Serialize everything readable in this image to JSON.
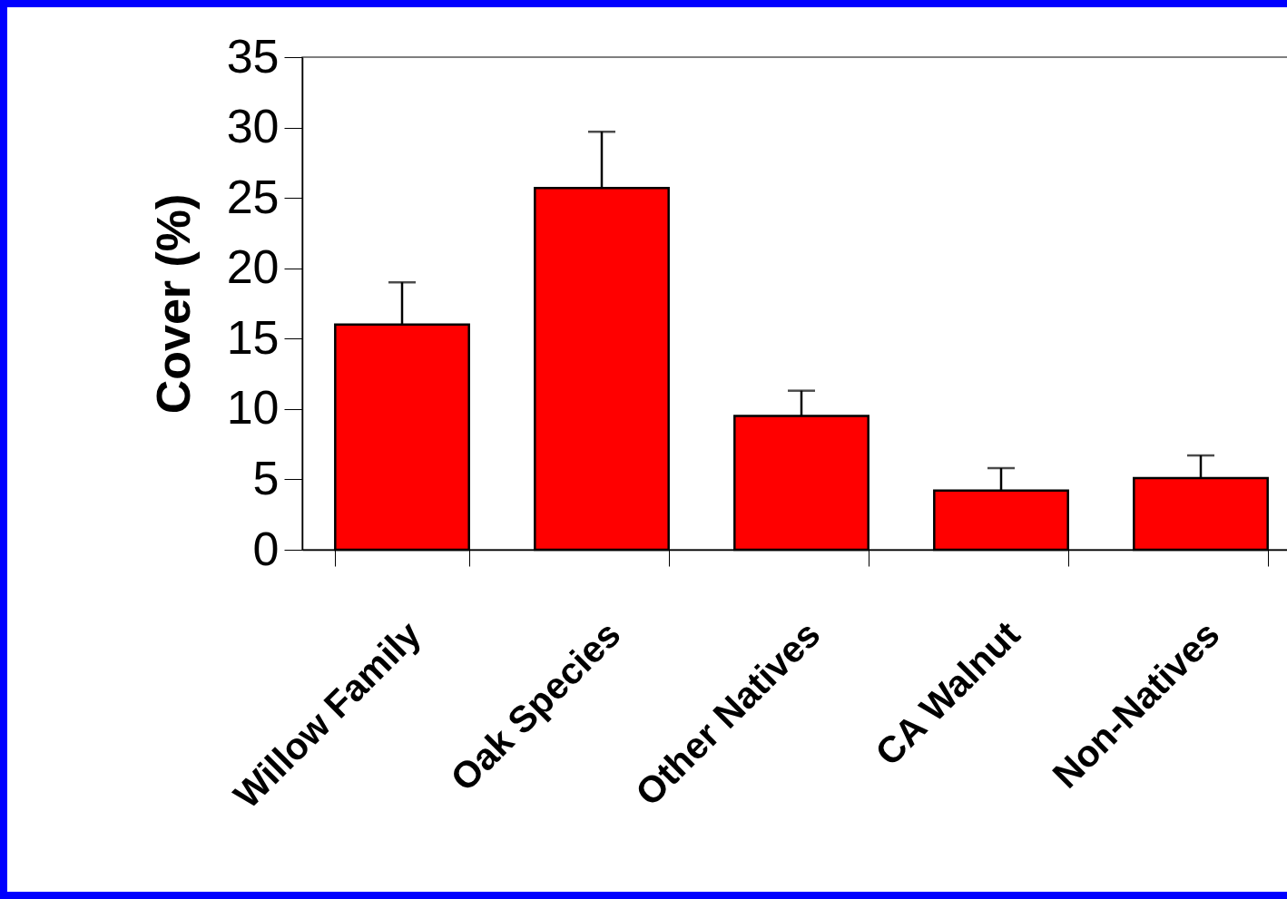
{
  "chart_data": {
    "type": "bar",
    "ylabel": "Cover (%)",
    "categories": [
      "Willow Family",
      "Oak Species",
      "Other Natives",
      "CA Walnut",
      "Non-Natives"
    ],
    "values": [
      16,
      25.7,
      9.5,
      4.2,
      5.1
    ],
    "errors": [
      [
        16,
        19
      ],
      [
        25.7,
        29.7
      ],
      [
        9.5,
        11.3
      ],
      [
        4.2,
        5.8
      ],
      [
        5.1,
        6.7
      ]
    ],
    "color": "#ff0000",
    "ylim": [
      0,
      35
    ],
    "yticks": [
      0,
      5,
      10,
      15,
      20,
      25,
      30,
      35
    ],
    "grid": false
  }
}
